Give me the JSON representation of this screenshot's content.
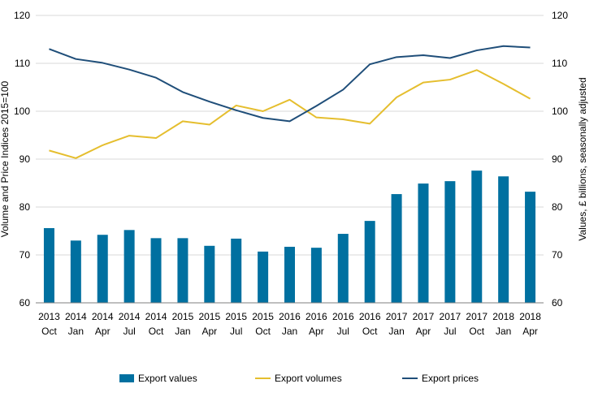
{
  "chart_data": {
    "type": "bar",
    "categories": [
      [
        "2013",
        "Oct"
      ],
      [
        "2014",
        "Jan"
      ],
      [
        "2014",
        "Apr"
      ],
      [
        "2014",
        "Jul"
      ],
      [
        "2014",
        "Oct"
      ],
      [
        "2015",
        "Jan"
      ],
      [
        "2015",
        "Apr"
      ],
      [
        "2015",
        "Jul"
      ],
      [
        "2015",
        "Oct"
      ],
      [
        "2016",
        "Jan"
      ],
      [
        "2016",
        "Apr"
      ],
      [
        "2016",
        "Jul"
      ],
      [
        "2016",
        "Oct"
      ],
      [
        "2017",
        "Jan"
      ],
      [
        "2017",
        "Apr"
      ],
      [
        "2017",
        "Jul"
      ],
      [
        "2017",
        "Oct"
      ],
      [
        "2018",
        "Jan"
      ],
      [
        "2018",
        "Apr"
      ]
    ],
    "ylabel": "Volume and Price Indices 2015=100",
    "y2label": "Values, £ billions, seasonally adjusted",
    "ylim": [
      60,
      120
    ],
    "y2lim": [
      60,
      120
    ],
    "yticks": [
      60,
      70,
      80,
      90,
      100,
      110,
      120
    ],
    "grid": true,
    "legend_position": "bottom",
    "series": [
      {
        "name": "Export values",
        "type": "bar",
        "axis": "right",
        "color": "#0070A0",
        "values": [
          75.6,
          73.0,
          74.2,
          75.2,
          73.5,
          73.5,
          71.9,
          73.4,
          70.7,
          71.7,
          71.5,
          74.4,
          77.1,
          82.7,
          84.9,
          85.4,
          87.6,
          86.4,
          83.2
        ]
      },
      {
        "name": "Export volumes",
        "type": "line",
        "axis": "left",
        "color": "#E5BE2E",
        "values": [
          91.8,
          90.2,
          92.9,
          94.9,
          94.4,
          97.9,
          97.2,
          101.2,
          100.0,
          102.4,
          98.7,
          98.3,
          97.4,
          102.9,
          106.0,
          106.6,
          108.6,
          105.7,
          102.6
        ]
      },
      {
        "name": "Export prices",
        "type": "line",
        "axis": "left",
        "color": "#1F4E79",
        "values": [
          113.0,
          110.9,
          110.1,
          108.7,
          107.0,
          104.0,
          102.0,
          100.2,
          98.6,
          97.9,
          101.1,
          104.5,
          109.8,
          111.3,
          111.7,
          111.1,
          112.7,
          113.6,
          113.3
        ]
      }
    ]
  }
}
